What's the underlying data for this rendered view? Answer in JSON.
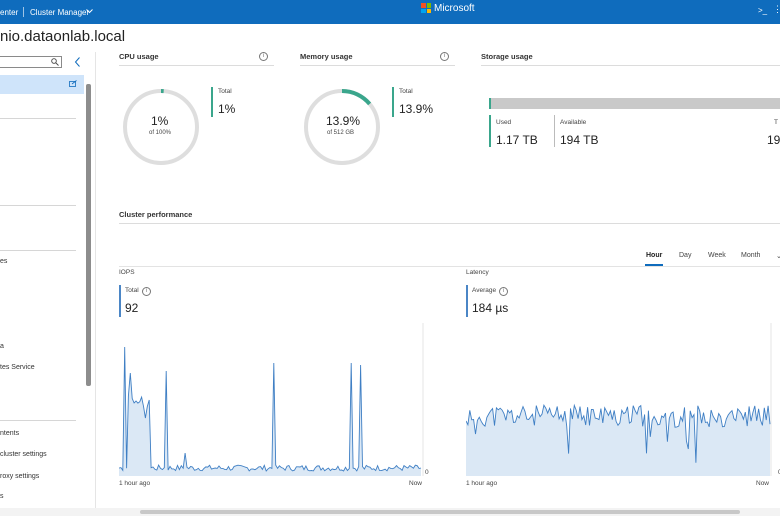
{
  "topbar": {
    "crumb_left": "enter",
    "crumb_app": "Cluster Manager",
    "brand": "Microsoft",
    "console_icon": ">_",
    "more_icon": "ellipsis-icon"
  },
  "page": {
    "title": "nio.dataonlab.local"
  },
  "sidebar": {
    "items": [
      "es",
      "a",
      "tes Service",
      "ntents",
      "cluster settings",
      "roxy settings",
      "s"
    ]
  },
  "cpu": {
    "title": "CPU usage",
    "center_value": "1%",
    "center_sub": "of 100%",
    "total_label": "Total",
    "total_value": "1%",
    "fraction": 0.01
  },
  "memory": {
    "title": "Memory usage",
    "center_value": "13.9%",
    "center_sub": "of 512 GB",
    "total_label": "Total",
    "total_value": "13.9%",
    "fraction": 0.139
  },
  "storage": {
    "title": "Storage usage",
    "used_label": "Used",
    "used_value": "1.17 TB",
    "available_label": "Available",
    "available_value": "194 TB",
    "total_label_partial": "T",
    "total_value_partial": "19"
  },
  "performance": {
    "title": "Cluster performance",
    "tabs": [
      "Hour",
      "Day",
      "Week",
      "Month"
    ],
    "active_tab": "Hour",
    "iops": {
      "title": "IOPS",
      "total_label": "Total",
      "total_value": "92",
      "axis_zero": "0",
      "x_start": "1 hour ago",
      "x_end": "Now"
    },
    "latency": {
      "title": "Latency",
      "avg_label": "Average",
      "avg_value": "184 µs",
      "axis_zero": "0",
      "x_start": "1 hour ago",
      "x_end": "Now"
    }
  },
  "colors": {
    "topbar": "#0f6cbd",
    "cpu_accent": "#3aa68c",
    "chart_line": "#3f7fc4",
    "chart_fill": "#dbe8f5",
    "ring_track": "#dedede"
  }
}
